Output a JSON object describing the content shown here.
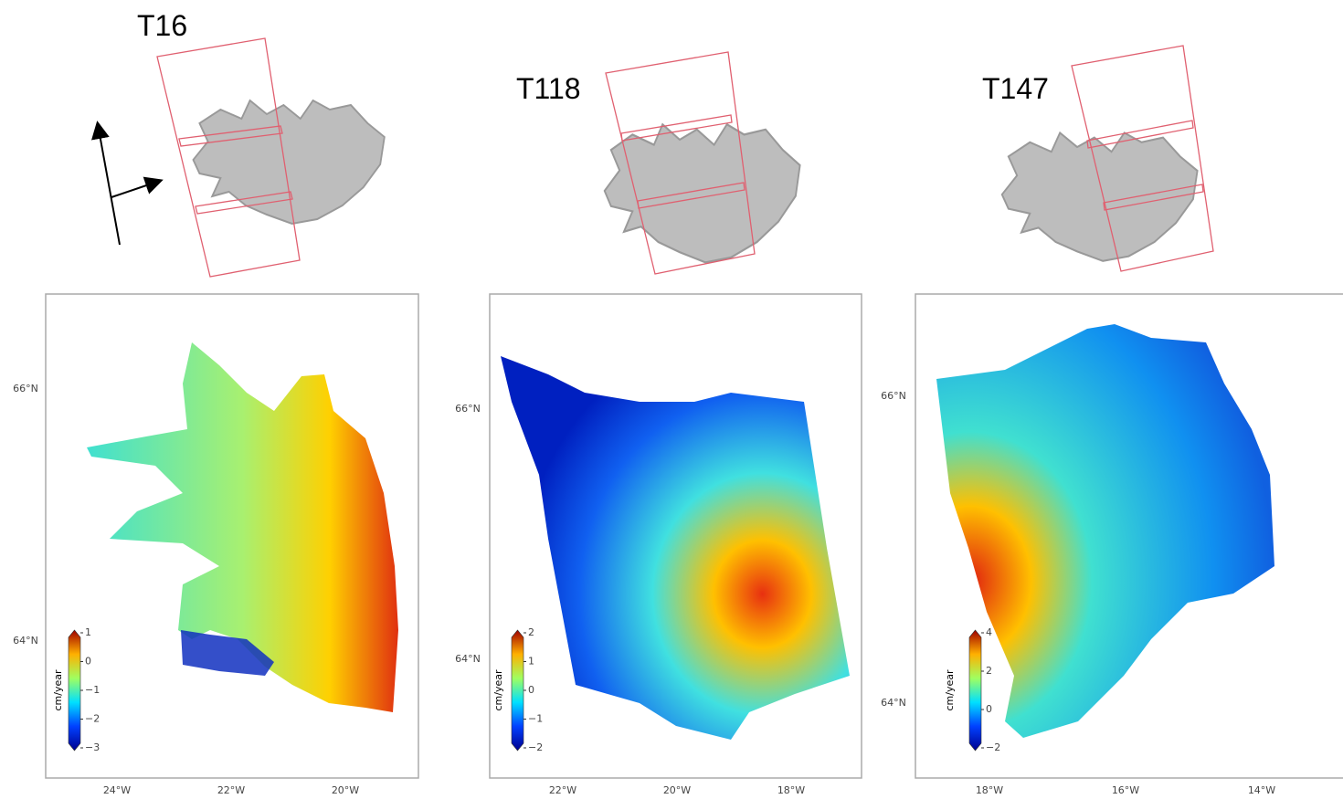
{
  "panels": [
    {
      "track": "T16",
      "lat_labels": [
        "66°N",
        "64°N"
      ],
      "lon_labels": [
        "24°W",
        "22°W",
        "20°W"
      ],
      "colorbar": {
        "label": "cm/year",
        "ticks": [
          1,
          0,
          {
            "value": -1,
            "label": "−1"
          },
          {
            "value": -2,
            "label": "−2"
          },
          {
            "value": -3,
            "label": "−3"
          }
        ]
      }
    },
    {
      "track": "T118",
      "lat_labels": [
        "66°N",
        "64°N"
      ],
      "lon_labels": [
        "22°W",
        "20°W",
        "18°W"
      ],
      "colorbar": {
        "label": "cm/year",
        "ticks": [
          2,
          1,
          0,
          {
            "value": -1,
            "label": "−1"
          },
          {
            "value": -2,
            "label": "−2"
          }
        ]
      }
    },
    {
      "track": "T147",
      "lat_labels": [
        "66°N",
        "64°N"
      ],
      "lon_labels": [
        "18°W",
        "16°W",
        "14°W"
      ],
      "colorbar": {
        "label": "cm/year",
        "ticks": [
          4,
          2,
          0,
          {
            "value": -2,
            "label": "−2"
          }
        ]
      }
    }
  ]
}
